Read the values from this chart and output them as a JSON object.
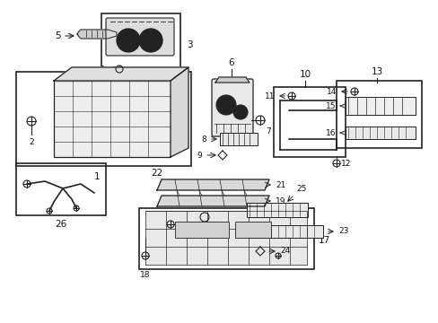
{
  "bg_color": "#ffffff",
  "figsize": [
    4.89,
    3.6
  ],
  "dpi": 100,
  "line_color": "#222222",
  "label_color": "#111111",
  "fs": 7.5,
  "fs_sm": 6.5
}
